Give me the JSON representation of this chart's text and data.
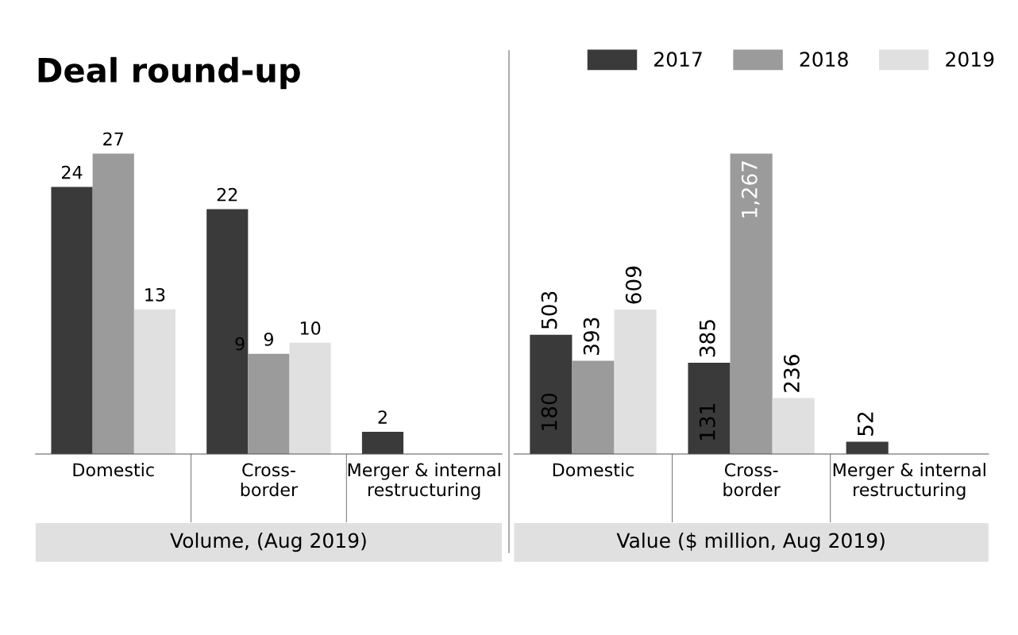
{
  "chart_data": [
    {
      "type": "bar",
      "title": "Deal round-up",
      "xlabel": "Volume, (Aug 2019)",
      "categories": [
        "Domestic",
        "Cross-\nborder",
        "Merger & internal\nrestructuring"
      ],
      "series": [
        {
          "name": "2017",
          "color": "#3a3a3a",
          "values": [
            24,
            22,
            2
          ]
        },
        {
          "name": "2018",
          "color": "#9b9b9b",
          "values": [
            27,
            9,
            null
          ]
        },
        {
          "name": "2019",
          "color": "#e0e0e0",
          "values": [
            13,
            10,
            null
          ]
        }
      ],
      "data_labels": true,
      "grid": false,
      "legend": "top right",
      "tick_labels": "x",
      "annotations": [
        {
          "text": "9",
          "x": "Cross-\nborder",
          "y": 9
        }
      ]
    },
    {
      "type": "bar",
      "xlabel": "Value ($ million, Aug 2019)",
      "categories": [
        "Domestic",
        "Cross-\nborder",
        "Merger & internal\nrestructuring"
      ],
      "series": [
        {
          "name": "2017",
          "color": "#3a3a3a",
          "values": [
            503,
            385,
            52
          ],
          "value_labels": [
            "503",
            "385",
            "52"
          ]
        },
        {
          "name": "2018",
          "color": "#9b9b9b",
          "values": [
            393,
            1267,
            null
          ],
          "value_labels": [
            "393",
            "1,267",
            null
          ]
        },
        {
          "name": "2019",
          "color": "#e0e0e0",
          "values": [
            609,
            236,
            null
          ],
          "value_labels": [
            "609",
            "236",
            null
          ]
        }
      ],
      "grid": false,
      "tick_labels": "x",
      "annotations": [
        "180",
        "131"
      ]
    }
  ]
}
